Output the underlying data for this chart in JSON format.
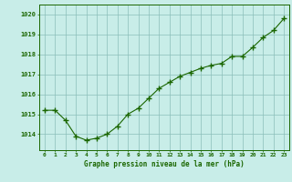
{
  "x": [
    0,
    1,
    2,
    3,
    4,
    5,
    6,
    7,
    8,
    9,
    10,
    11,
    12,
    13,
    14,
    15,
    16,
    17,
    18,
    19,
    20,
    21,
    22,
    23
  ],
  "y": [
    1015.2,
    1015.2,
    1014.7,
    1013.9,
    1013.7,
    1013.8,
    1014.0,
    1014.4,
    1015.0,
    1015.3,
    1015.8,
    1016.3,
    1016.6,
    1016.9,
    1017.1,
    1017.3,
    1017.45,
    1017.55,
    1017.9,
    1017.9,
    1018.35,
    1018.85,
    1019.2,
    1019.8
  ],
  "ylim": [
    1013.2,
    1020.5
  ],
  "yticks": [
    1014,
    1015,
    1016,
    1017,
    1018,
    1019,
    1020
  ],
  "xticks": [
    0,
    1,
    2,
    3,
    4,
    5,
    6,
    7,
    8,
    9,
    10,
    11,
    12,
    13,
    14,
    15,
    16,
    17,
    18,
    19,
    20,
    21,
    22,
    23
  ],
  "xlabel": "Graphe pression niveau de la mer (hPa)",
  "line_color": "#1a6600",
  "marker": "+",
  "marker_size": 4,
  "bg_color": "#c8ede8",
  "grid_color": "#8bbfba",
  "tick_label_color": "#1a6600",
  "xlabel_color": "#1a6600"
}
